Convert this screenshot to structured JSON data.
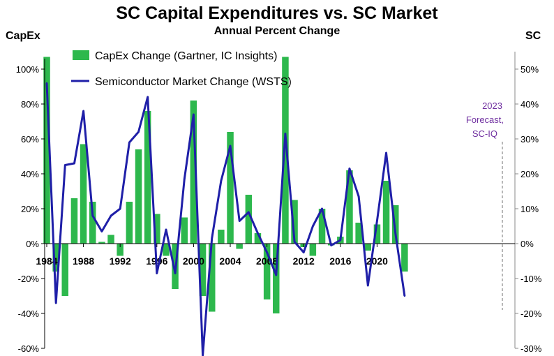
{
  "chart_data": {
    "type": "bar+line",
    "title": "SC Capital Expenditures vs. SC Market",
    "subtitle": "Annual Percent Change",
    "left_axis_label": "CapEx",
    "right_axis_label": "SC",
    "left_ylim": [
      -60,
      110
    ],
    "right_ylim": [
      -30,
      55
    ],
    "left_ticks": [
      "-60%",
      "-40%",
      "-20%",
      "0%",
      "20%",
      "40%",
      "60%",
      "80%",
      "100%"
    ],
    "left_tick_values": [
      -60,
      -40,
      -20,
      0,
      20,
      40,
      60,
      80,
      100
    ],
    "right_ticks": [
      "-30%",
      "-20%",
      "-10%",
      "0%",
      "10%",
      "20%",
      "30%",
      "40%",
      "50%"
    ],
    "right_tick_values": [
      -30,
      -20,
      -10,
      0,
      10,
      20,
      30,
      40,
      50
    ],
    "x_tick_labels": [
      "1984",
      "1988",
      "1992",
      "1996",
      "2000",
      "2004",
      "2008",
      "2012",
      "2016",
      "2020"
    ],
    "years": [
      1984,
      1985,
      1986,
      1987,
      1988,
      1989,
      1990,
      1991,
      1992,
      1993,
      1994,
      1995,
      1996,
      1997,
      1998,
      1999,
      2000,
      2001,
      2002,
      2003,
      2004,
      2005,
      2006,
      2007,
      2008,
      2009,
      2010,
      2011,
      2012,
      2013,
      2014,
      2015,
      2016,
      2017,
      2018,
      2019,
      2020,
      2021,
      2022,
      2023
    ],
    "series": [
      {
        "name": "CapEx Change  (Gartner, IC Insights)",
        "type": "bar",
        "axis": "left",
        "color": "#2db84d",
        "values": [
          107,
          -16,
          -30,
          26,
          57,
          24,
          1,
          5,
          -7,
          24,
          54,
          76,
          17,
          -7,
          -26,
          15,
          82,
          -30,
          -39,
          8,
          64,
          -3,
          28,
          6,
          -32,
          -40,
          107,
          25,
          -2,
          -7,
          20,
          -1,
          4,
          42,
          12,
          -4,
          11,
          36,
          22,
          -16
        ]
      },
      {
        "name": "Semiconductor Market Change (WSTS)",
        "type": "line",
        "axis": "right",
        "color": "#1f1fa8",
        "values": [
          46,
          -17,
          22.5,
          23,
          38,
          8,
          3.5,
          8,
          10,
          29,
          32,
          42,
          -8.5,
          4,
          -8.5,
          18.5,
          37,
          -32,
          1.5,
          18,
          28,
          6.5,
          9,
          3,
          -2.5,
          -9,
          31.5,
          0.5,
          -2.5,
          5,
          10,
          -0.5,
          1,
          21.5,
          13.5,
          -12,
          6.5,
          26,
          3,
          -15
        ]
      }
    ],
    "legend_position": "top-left",
    "annotation": [
      "2023",
      "Forecast,",
      "SC-IQ"
    ]
  }
}
